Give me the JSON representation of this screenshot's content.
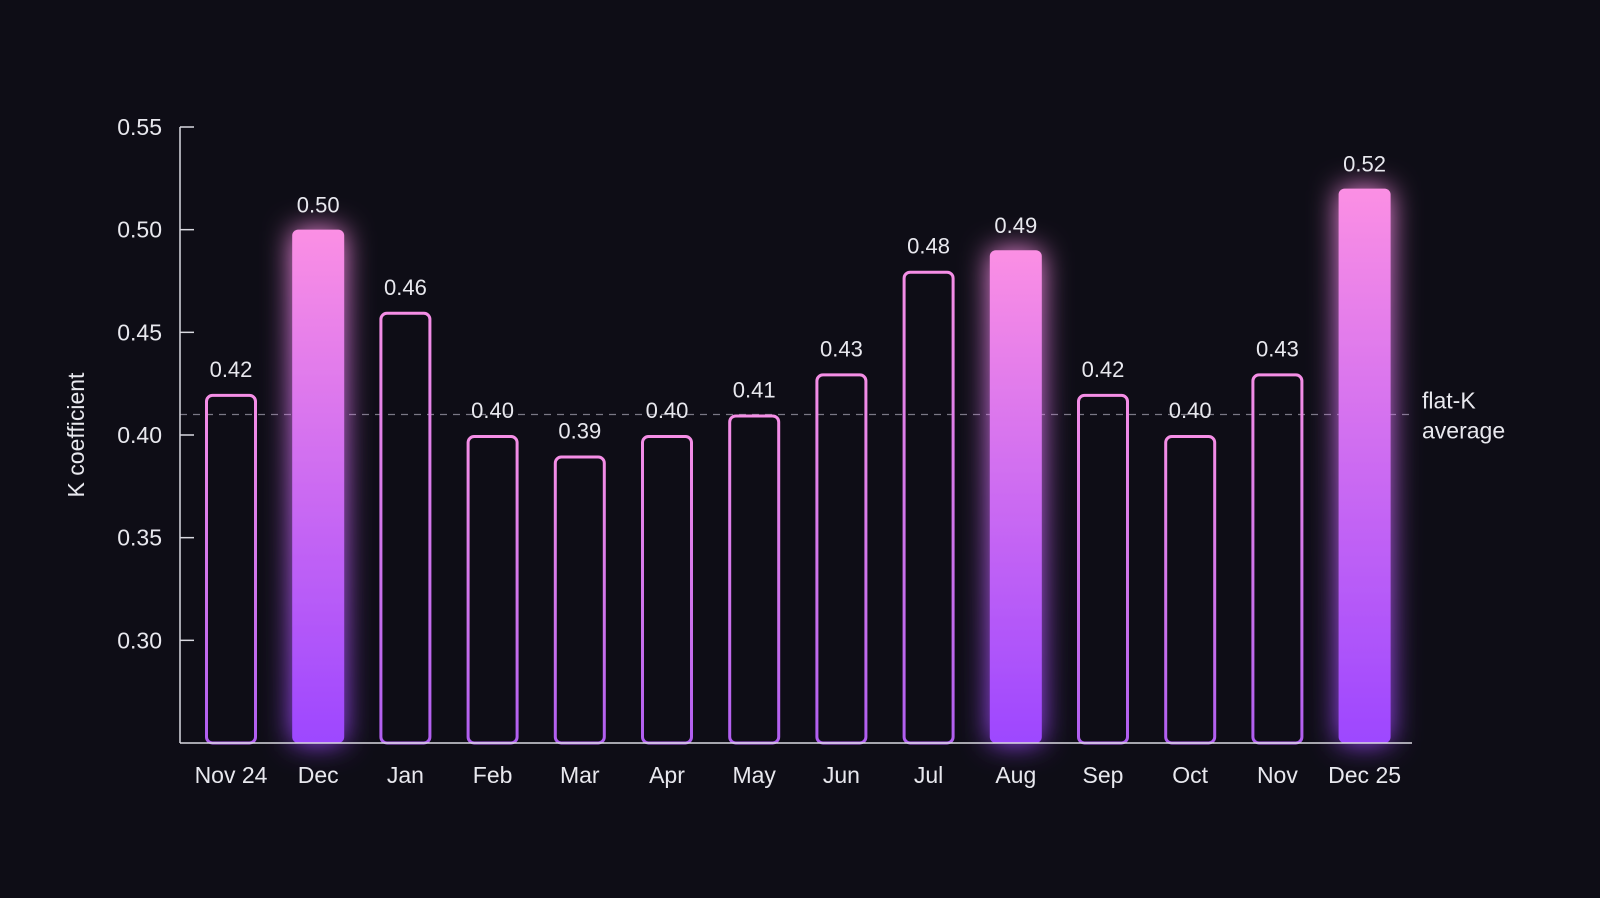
{
  "colors": {
    "background": "#0e0d16",
    "axis": "#d9d9e0",
    "text": "#e8e8ee",
    "reference_line": "#7a7885",
    "bar_outline_top": "#f58ee6",
    "bar_outline_bottom": "#b05ef0",
    "bar_fill_top": "#fb8fe4",
    "bar_fill_bottom": "#9d47ff"
  },
  "chart_data": {
    "type": "bar",
    "title": "",
    "xlabel": "",
    "ylabel": "K coefficient",
    "ylim": [
      0.25,
      0.55
    ],
    "yticks": [
      0.3,
      0.35,
      0.4,
      0.45,
      0.5,
      0.55
    ],
    "ytick_labels": [
      "0.30",
      "0.35",
      "0.40",
      "0.45",
      "0.50",
      "0.55"
    ],
    "grid": false,
    "categories": [
      "Nov 24",
      "Dec",
      "Jan",
      "Feb",
      "Mar",
      "Apr",
      "May",
      "Jun",
      "Jul",
      "Aug",
      "Sep",
      "Oct",
      "Nov",
      "Dec 25"
    ],
    "values": [
      0.42,
      0.5,
      0.46,
      0.4,
      0.39,
      0.4,
      0.41,
      0.43,
      0.48,
      0.49,
      0.42,
      0.4,
      0.43,
      0.52
    ],
    "value_labels": [
      "0.42",
      "0.50",
      "0.46",
      "0.40",
      "0.39",
      "0.40",
      "0.41",
      "0.43",
      "0.48",
      "0.49",
      "0.42",
      "0.40",
      "0.43",
      "0.52"
    ],
    "highlighted": [
      false,
      true,
      false,
      false,
      false,
      false,
      false,
      false,
      false,
      true,
      false,
      false,
      false,
      true
    ],
    "reference_line": {
      "value": 0.41,
      "label_lines": [
        "flat-K",
        "average"
      ],
      "style": "dashed"
    }
  }
}
